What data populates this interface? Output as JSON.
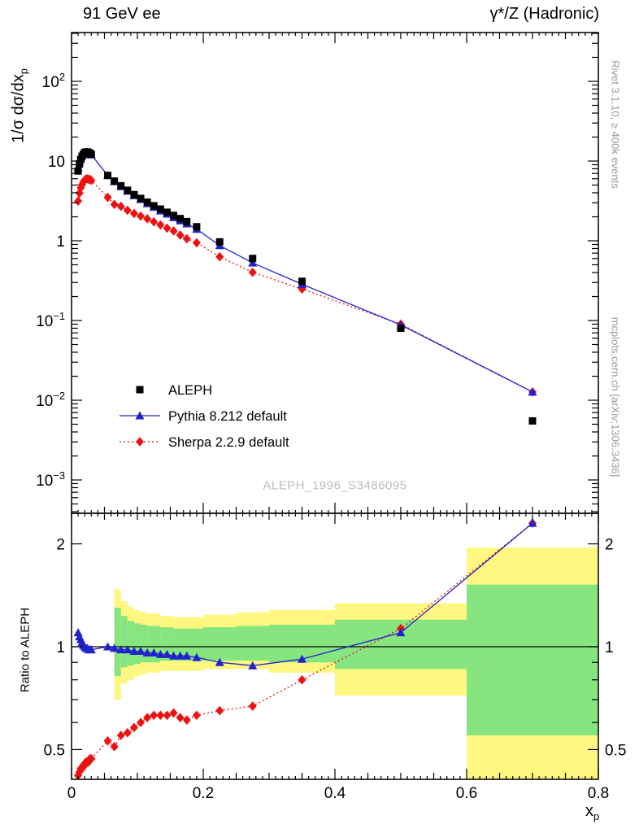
{
  "titles": {
    "top_left": "91 GeV ee",
    "top_right": "γ*/Z (Hadronic)"
  },
  "side_notes": {
    "rivet": "Rivet 3.1.10, ≥ 400k events",
    "mcplots": "mcplots.cern.ch [arXiv:1306.3436]"
  },
  "watermark": "ALEPH_1996_S3486095",
  "axis_titles": {
    "y_main": "1/σ dσ/dx",
    "y_sub": "p",
    "ratio": "Ratio to ALEPH",
    "x_main": "x",
    "x_sub": "p"
  },
  "chart_data": {
    "type": "line",
    "title": "91 GeV ee, γ*/Z (Hadronic), scaled momentum spectrum",
    "xlabel": "x_p",
    "ylabel": "1/σ dσ/dx_p",
    "ratio_label": "Ratio to ALEPH",
    "legend_position": "inside-left-bottom",
    "x_axis": {
      "min": 0,
      "max": 0.8,
      "major_ticks": [
        0,
        0.2,
        0.4,
        0.6,
        0.8
      ],
      "tick_labels": [
        "0",
        "0.2",
        "0.4",
        "0.6",
        "0.8"
      ]
    },
    "y_axis_top": {
      "scale": "log",
      "min": 0.0004,
      "max": 400,
      "major_ticks": [
        100,
        10,
        1,
        0.1,
        0.01,
        0.001
      ],
      "tick_labels": [
        "10^2",
        "10",
        "1",
        "10^−1",
        "10^−2",
        "10^−3"
      ]
    },
    "y_axis_ratio": {
      "scale": "log",
      "min": 0.41,
      "max": 2.44,
      "major_ticks": [
        2,
        1,
        0.5
      ],
      "tick_labels": [
        "2",
        "1",
        "0.5"
      ],
      "minor_ticks": [
        0.6,
        0.7,
        0.8,
        0.9
      ]
    },
    "x": [
      0.01,
      0.012,
      0.014,
      0.016,
      0.018,
      0.02,
      0.022,
      0.024,
      0.026,
      0.028,
      0.03,
      0.055,
      0.065,
      0.075,
      0.085,
      0.095,
      0.105,
      0.115,
      0.125,
      0.135,
      0.145,
      0.155,
      0.165,
      0.175,
      0.19,
      0.225,
      0.275,
      0.35,
      0.5,
      0.7
    ],
    "series": [
      {
        "id": "aleph",
        "name": "ALEPH",
        "marker": "square",
        "color": "#000000",
        "line": "none",
        "values": [
          7.5,
          9.2,
          10.5,
          11.5,
          12.2,
          12.8,
          13.0,
          13.0,
          12.8,
          12.5,
          12.2,
          6.6,
          5.6,
          4.9,
          4.3,
          3.8,
          3.4,
          3.05,
          2.75,
          2.5,
          2.28,
          2.08,
          1.9,
          1.74,
          1.5,
          0.97,
          0.6,
          0.31,
          0.08,
          0.0055
        ],
        "ratio": null
      },
      {
        "id": "pythia",
        "name": "Pythia 8.212 default",
        "marker": "triangle",
        "color": "#2222cc",
        "line": "solid",
        "values": [
          8.25,
          9.84,
          11.0,
          11.8,
          12.3,
          12.8,
          12.9,
          12.9,
          12.5,
          12.3,
          12.0,
          6.6,
          5.54,
          4.8,
          4.21,
          3.69,
          3.3,
          2.93,
          2.64,
          2.38,
          2.17,
          1.96,
          1.79,
          1.64,
          1.4,
          0.873,
          0.528,
          0.285,
          0.088,
          0.0127
        ],
        "ratio": [
          1.1,
          1.07,
          1.05,
          1.03,
          1.01,
          1.0,
          0.99,
          0.99,
          0.98,
          0.98,
          0.98,
          1.0,
          0.99,
          0.98,
          0.98,
          0.97,
          0.97,
          0.96,
          0.96,
          0.95,
          0.95,
          0.94,
          0.94,
          0.94,
          0.93,
          0.9,
          0.88,
          0.92,
          1.1,
          2.3
        ]
      },
      {
        "id": "sherpa",
        "name": "Sherpa 2.2.9 default",
        "marker": "diamond",
        "color": "#ee1111",
        "line": "dotted",
        "values": [
          3.15,
          3.96,
          4.62,
          5.06,
          5.49,
          5.76,
          5.98,
          5.98,
          5.89,
          5.88,
          5.73,
          3.5,
          2.86,
          2.7,
          2.41,
          2.2,
          2.04,
          1.89,
          1.73,
          1.58,
          1.44,
          1.33,
          1.18,
          1.06,
          0.945,
          0.631,
          0.402,
          0.248,
          0.09,
          0.0127
        ],
        "ratio": [
          0.42,
          0.43,
          0.44,
          0.44,
          0.45,
          0.45,
          0.46,
          0.46,
          0.46,
          0.47,
          0.47,
          0.53,
          0.51,
          0.55,
          0.56,
          0.58,
          0.6,
          0.62,
          0.63,
          0.63,
          0.63,
          0.64,
          0.62,
          0.61,
          0.63,
          0.65,
          0.67,
          0.8,
          1.13,
          2.3
        ]
      }
    ],
    "reference_line": 1,
    "bands": {
      "yellow_color": "#fff780",
      "green_color": "#86e57f",
      "segments": [
        {
          "x0": 0.065,
          "x1": 0.075,
          "yellow": [
            0.7,
            1.47
          ],
          "green": [
            0.82,
            1.3
          ]
        },
        {
          "x0": 0.075,
          "x1": 0.085,
          "yellow": [
            0.78,
            1.36
          ],
          "green": [
            0.87,
            1.23
          ]
        },
        {
          "x0": 0.085,
          "x1": 0.095,
          "yellow": [
            0.8,
            1.31
          ],
          "green": [
            0.88,
            1.19
          ]
        },
        {
          "x0": 0.095,
          "x1": 0.105,
          "yellow": [
            0.82,
            1.28
          ],
          "green": [
            0.89,
            1.17
          ]
        },
        {
          "x0": 0.105,
          "x1": 0.115,
          "yellow": [
            0.83,
            1.26
          ],
          "green": [
            0.9,
            1.16
          ]
        },
        {
          "x0": 0.115,
          "x1": 0.135,
          "yellow": [
            0.84,
            1.25
          ],
          "green": [
            0.9,
            1.15
          ]
        },
        {
          "x0": 0.135,
          "x1": 0.155,
          "yellow": [
            0.85,
            1.23
          ],
          "green": [
            0.91,
            1.14
          ]
        },
        {
          "x0": 0.155,
          "x1": 0.2,
          "yellow": [
            0.85,
            1.22
          ],
          "green": [
            0.91,
            1.13
          ]
        },
        {
          "x0": 0.2,
          "x1": 0.25,
          "yellow": [
            0.86,
            1.24
          ],
          "green": [
            0.91,
            1.14
          ]
        },
        {
          "x0": 0.25,
          "x1": 0.3,
          "yellow": [
            0.86,
            1.26
          ],
          "green": [
            0.91,
            1.15
          ]
        },
        {
          "x0": 0.3,
          "x1": 0.4,
          "yellow": [
            0.84,
            1.28
          ],
          "green": [
            0.9,
            1.16
          ]
        },
        {
          "x0": 0.4,
          "x1": 0.6,
          "yellow": [
            0.72,
            1.34
          ],
          "green": [
            0.86,
            1.2
          ]
        },
        {
          "x0": 0.6,
          "x1": 0.8,
          "yellow": [
            0.4,
            1.95
          ],
          "green": [
            0.55,
            1.52
          ]
        }
      ]
    }
  }
}
